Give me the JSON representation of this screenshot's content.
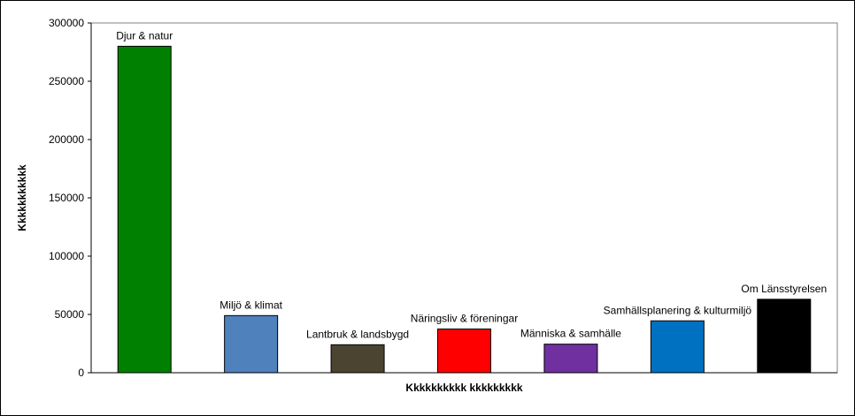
{
  "chart_data": {
    "type": "bar",
    "title": "",
    "xlabel": "Kkkkkkkkkk kkkkkkkkk",
    "ylabel": "Kkkkkkkkkkk",
    "categories": [
      "Djur & natur",
      "Miljö & klimat",
      "Lantbruk & landsbygd",
      "Näringsliv & föreningar",
      "Människa & samhälle",
      "Samhällsplanering & kulturmiljö",
      "Om Länsstyrelsen"
    ],
    "values": [
      280000,
      49000,
      24000,
      37500,
      24500,
      44500,
      63000
    ],
    "colors": [
      "#008000",
      "#4f81bd",
      "#4a4430",
      "#ff0000",
      "#7030a0",
      "#0070c0",
      "#000000"
    ],
    "ylim": [
      0,
      300000
    ],
    "yticks": [
      "0",
      "50000",
      "100000",
      "150000",
      "200000",
      "250000",
      "300000"
    ],
    "grid": false,
    "legend": "none",
    "plot_area_color": "#ffffff",
    "bar_outline_color": "#000000"
  }
}
